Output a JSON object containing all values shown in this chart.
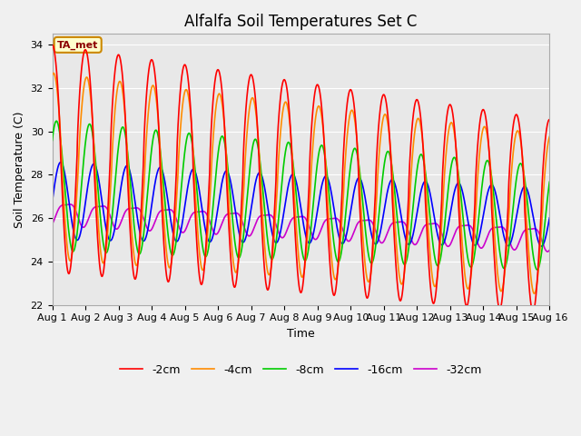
{
  "title": "Alfalfa Soil Temperatures Set C",
  "ylabel": "Soil Temperature (C)",
  "xlabel": "Time",
  "ylim": [
    22,
    34.5
  ],
  "xlim": [
    0,
    15
  ],
  "xtick_labels": [
    "Aug 1",
    "Aug 2",
    "Aug 3",
    "Aug 4",
    "Aug 5",
    "Aug 6",
    "Aug 7",
    "Aug 8",
    "Aug 9",
    "Aug 10",
    "Aug 11",
    "Aug 12",
    "Aug 13",
    "Aug 14",
    "Aug 15",
    "Aug 16"
  ],
  "ytick_values": [
    22,
    24,
    26,
    28,
    30,
    32,
    34
  ],
  "annotation_text": "TA_met",
  "colors": {
    "-2cm": "#ff0000",
    "-4cm": "#ff8c00",
    "-8cm": "#00cc00",
    "-16cm": "#0000ff",
    "-32cm": "#cc00cc"
  },
  "legend_labels": [
    "-2cm",
    "-4cm",
    "-8cm",
    "-16cm",
    "-32cm"
  ],
  "bg_color": "#e8e8e8",
  "fig_bg_color": "#f0f0f0",
  "title_fontsize": 12,
  "label_fontsize": 9,
  "tick_fontsize": 8,
  "line_width": 1.2
}
